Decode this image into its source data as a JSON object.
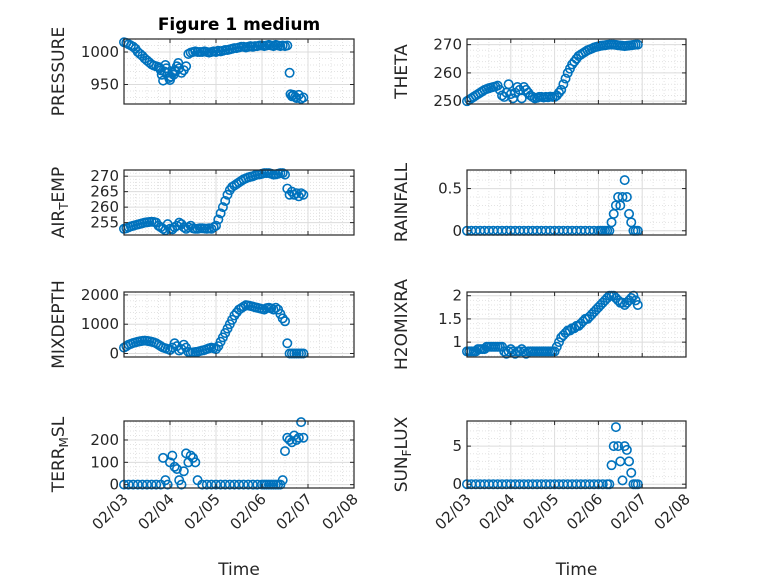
{
  "figure": {
    "title": "Figure 1 medium",
    "xlabel": "Time",
    "marker_color": "#0072BD",
    "axes_color": "#262626"
  },
  "chart_data": [
    {
      "id": "pressure",
      "type": "scatter",
      "ylabel": "PRESSURE",
      "xlim": [
        0,
        5
      ],
      "ylim": [
        920,
        1020
      ],
      "yticks": [
        950,
        1000
      ],
      "ytick_labels": [
        "950",
        "1000"
      ],
      "xticks": [
        0,
        1,
        2,
        3,
        4,
        5
      ],
      "xtick_labels": [],
      "title": "Figure 1 medium",
      "x": [
        0.0,
        0.05,
        0.1,
        0.15,
        0.2,
        0.25,
        0.3,
        0.35,
        0.4,
        0.45,
        0.5,
        0.55,
        0.6,
        0.65,
        0.7,
        0.75,
        0.78,
        0.8,
        0.82,
        0.85,
        0.88,
        0.9,
        0.92,
        0.95,
        0.98,
        1.0,
        1.02,
        1.05,
        1.08,
        1.1,
        1.12,
        1.15,
        1.18,
        1.2,
        1.25,
        1.3,
        1.35,
        1.4,
        1.45,
        1.5,
        1.55,
        1.6,
        1.65,
        1.7,
        1.75,
        1.8,
        1.85,
        1.9,
        1.95,
        2.0,
        2.05,
        2.1,
        2.15,
        2.2,
        2.25,
        2.3,
        2.35,
        2.4,
        2.45,
        2.5,
        2.55,
        2.6,
        2.65,
        2.7,
        2.75,
        2.8,
        2.85,
        2.9,
        2.95,
        3.0,
        3.05,
        3.1,
        3.15,
        3.2,
        3.25,
        3.3,
        3.35,
        3.4,
        3.45,
        3.5,
        3.55,
        3.6,
        3.62,
        3.65,
        3.68,
        3.72,
        3.75,
        3.8,
        3.85,
        3.9
      ],
      "y": [
        1015,
        1014,
        1012,
        1010,
        1008,
        1005,
        1000,
        997,
        994,
        990,
        987,
        984,
        981,
        979,
        978,
        977,
        975,
        972,
        965,
        956,
        970,
        980,
        975,
        968,
        960,
        957,
        962,
        968,
        965,
        972,
        970,
        978,
        983,
        975,
        968,
        972,
        978,
        997,
        999,
        1000,
        1001,
        1000,
        1000,
        1000,
        1001,
        1000,
        999,
        1000,
        1001,
        1000,
        1002,
        1001,
        1002,
        1003,
        1003,
        1004,
        1005,
        1006,
        1006,
        1007,
        1008,
        1008,
        1007,
        1008,
        1009,
        1008,
        1009,
        1009,
        1010,
        1010,
        1009,
        1010,
        1011,
        1010,
        1009,
        1011,
        1010,
        1009,
        1010,
        1009,
        1010,
        968,
        935,
        932,
        934,
        931,
        929,
        934,
        928,
        930
      ]
    },
    {
      "id": "theta",
      "type": "scatter",
      "ylabel": "THETA",
      "xlim": [
        0,
        5
      ],
      "ylim": [
        249,
        272
      ],
      "yticks": [
        250,
        260,
        270
      ],
      "ytick_labels": [
        "250",
        "260",
        "270"
      ],
      "xticks": [
        0,
        1,
        2,
        3,
        4,
        5
      ],
      "xtick_labels": [],
      "x": [
        0.0,
        0.05,
        0.1,
        0.15,
        0.2,
        0.25,
        0.3,
        0.35,
        0.4,
        0.45,
        0.5,
        0.55,
        0.6,
        0.65,
        0.7,
        0.75,
        0.8,
        0.85,
        0.9,
        0.95,
        1.0,
        1.05,
        1.1,
        1.15,
        1.2,
        1.25,
        1.3,
        1.35,
        1.4,
        1.45,
        1.5,
        1.55,
        1.6,
        1.65,
        1.7,
        1.75,
        1.8,
        1.85,
        1.9,
        1.95,
        2.0,
        2.05,
        2.1,
        2.15,
        2.2,
        2.25,
        2.3,
        2.35,
        2.4,
        2.45,
        2.5,
        2.55,
        2.6,
        2.65,
        2.7,
        2.75,
        2.8,
        2.85,
        2.9,
        2.95,
        3.0,
        3.05,
        3.1,
        3.15,
        3.2,
        3.25,
        3.3,
        3.35,
        3.4,
        3.45,
        3.5,
        3.55,
        3.6,
        3.65,
        3.7,
        3.75,
        3.8,
        3.85,
        3.9
      ],
      "y": [
        250,
        250.5,
        251,
        251.5,
        252,
        252.5,
        253,
        253.5,
        254,
        254.3,
        254.6,
        254.8,
        255,
        255.2,
        255.5,
        254,
        252,
        251.5,
        253,
        256,
        252.5,
        251,
        253,
        255,
        254,
        251,
        255,
        254,
        253,
        252,
        251.5,
        251,
        251.2,
        251.5,
        251.5,
        251.3,
        251.5,
        251.4,
        251.6,
        251.5,
        251.5,
        252,
        253,
        254,
        256,
        258,
        260,
        261.5,
        263,
        264,
        265,
        266,
        266.5,
        267,
        267.5,
        268,
        268.3,
        268.6,
        269,
        269.2,
        269.4,
        269.6,
        269.7,
        269.8,
        269.9,
        270,
        270,
        270,
        269.9,
        269.8,
        269.7,
        269.6,
        269.5,
        269.6,
        269.7,
        269.8,
        269.9,
        270,
        270
      ]
    },
    {
      "id": "air_temp",
      "type": "scatter",
      "ylabel": "AIR_TEMP",
      "xlim": [
        0,
        5
      ],
      "ylim": [
        251,
        272
      ],
      "yticks": [
        255,
        260,
        265,
        270
      ],
      "ytick_labels": [
        "255",
        "260",
        "265",
        "270"
      ],
      "xticks": [
        0,
        1,
        2,
        3,
        4,
        5
      ],
      "xtick_labels": [],
      "x": [
        0.0,
        0.05,
        0.1,
        0.15,
        0.2,
        0.25,
        0.3,
        0.35,
        0.4,
        0.45,
        0.5,
        0.55,
        0.6,
        0.65,
        0.7,
        0.75,
        0.8,
        0.85,
        0.9,
        0.95,
        1.0,
        1.05,
        1.1,
        1.15,
        1.2,
        1.25,
        1.3,
        1.35,
        1.4,
        1.45,
        1.5,
        1.55,
        1.6,
        1.65,
        1.7,
        1.75,
        1.8,
        1.85,
        1.9,
        1.95,
        2.0,
        2.05,
        2.1,
        2.15,
        2.2,
        2.25,
        2.3,
        2.35,
        2.4,
        2.45,
        2.5,
        2.55,
        2.6,
        2.65,
        2.7,
        2.75,
        2.8,
        2.85,
        2.9,
        2.95,
        3.0,
        3.05,
        3.1,
        3.15,
        3.2,
        3.25,
        3.3,
        3.35,
        3.4,
        3.45,
        3.5,
        3.55,
        3.6,
        3.65,
        3.7,
        3.75,
        3.8,
        3.85,
        3.9
      ],
      "y": [
        253,
        253.2,
        253.5,
        253.8,
        254,
        254.2,
        254.4,
        254.6,
        254.8,
        255,
        255.1,
        255.2,
        255.3,
        255.2,
        255,
        254,
        253.5,
        253,
        252.5,
        254.5,
        253,
        252.8,
        253.5,
        254,
        255,
        254.5,
        253.5,
        253,
        253.5,
        254,
        253.2,
        253,
        253,
        253.2,
        253.2,
        253.1,
        253,
        253.2,
        253,
        253.5,
        254,
        256,
        258,
        260,
        262,
        264,
        265.5,
        266.5,
        267,
        267.5,
        268,
        268.5,
        269,
        269.3,
        269.6,
        269.8,
        270,
        270.3,
        270.5,
        270.6,
        270.8,
        271,
        271,
        271,
        270.8,
        270.5,
        270.6,
        270.8,
        271,
        271,
        270.5,
        266,
        264,
        265,
        264,
        264.5,
        263.5,
        264.5,
        264
      ]
    },
    {
      "id": "rainfall",
      "type": "scatter",
      "ylabel": "RAINFALL",
      "xlim": [
        0,
        5
      ],
      "ylim": [
        -0.05,
        0.72
      ],
      "yticks": [
        0,
        0.5
      ],
      "ytick_labels": [
        "0",
        "0.5"
      ],
      "xticks": [
        0,
        1,
        2,
        3,
        4,
        5
      ],
      "xtick_labels": [],
      "x": [
        0.0,
        0.1,
        0.2,
        0.3,
        0.4,
        0.5,
        0.6,
        0.7,
        0.8,
        0.9,
        1.0,
        1.1,
        1.2,
        1.3,
        1.4,
        1.5,
        1.6,
        1.7,
        1.8,
        1.9,
        2.0,
        2.1,
        2.2,
        2.3,
        2.4,
        2.5,
        2.6,
        2.7,
        2.8,
        2.9,
        3.0,
        3.05,
        3.1,
        3.15,
        3.2,
        3.25,
        3.3,
        3.35,
        3.4,
        3.45,
        3.5,
        3.55,
        3.6,
        3.65,
        3.7,
        3.75,
        3.8,
        3.85,
        3.9
      ],
      "y": [
        0,
        0,
        0,
        0,
        0,
        0,
        0,
        0,
        0,
        0,
        0,
        0,
        0,
        0,
        0,
        0,
        0,
        0,
        0,
        0,
        0,
        0,
        0,
        0,
        0,
        0,
        0,
        0,
        0,
        0,
        0,
        0,
        0,
        0,
        0,
        0,
        0.1,
        0.2,
        0.3,
        0.4,
        0.3,
        0.4,
        0.6,
        0.4,
        0.2,
        0.1,
        0,
        0,
        0
      ]
    },
    {
      "id": "mixdepth",
      "type": "scatter",
      "ylabel": "MIXDEPTH",
      "xlim": [
        0,
        5
      ],
      "ylim": [
        -120,
        2100
      ],
      "yticks": [
        0,
        1000,
        2000
      ],
      "ytick_labels": [
        "0",
        "1000",
        "2000"
      ],
      "xticks": [
        0,
        1,
        2,
        3,
        4,
        5
      ],
      "xtick_labels": [],
      "x": [
        0.0,
        0.05,
        0.1,
        0.15,
        0.2,
        0.25,
        0.3,
        0.35,
        0.4,
        0.45,
        0.5,
        0.55,
        0.6,
        0.65,
        0.7,
        0.75,
        0.8,
        0.85,
        0.9,
        0.95,
        1.0,
        1.05,
        1.1,
        1.15,
        1.2,
        1.25,
        1.3,
        1.35,
        1.4,
        1.45,
        1.5,
        1.55,
        1.6,
        1.65,
        1.7,
        1.75,
        1.8,
        1.85,
        1.9,
        1.95,
        2.0,
        2.05,
        2.1,
        2.15,
        2.2,
        2.25,
        2.3,
        2.35,
        2.4,
        2.45,
        2.5,
        2.55,
        2.6,
        2.65,
        2.7,
        2.75,
        2.8,
        2.85,
        2.9,
        2.95,
        3.0,
        3.05,
        3.1,
        3.15,
        3.2,
        3.25,
        3.3,
        3.35,
        3.4,
        3.45,
        3.5,
        3.55,
        3.6,
        3.65,
        3.7,
        3.75,
        3.8,
        3.85,
        3.9
      ],
      "y": [
        200,
        250,
        300,
        330,
        360,
        380,
        400,
        420,
        430,
        440,
        430,
        420,
        400,
        380,
        350,
        300,
        250,
        200,
        180,
        150,
        120,
        200,
        350,
        250,
        100,
        150,
        300,
        200,
        50,
        30,
        40,
        50,
        60,
        80,
        100,
        120,
        150,
        180,
        200,
        180,
        150,
        250,
        400,
        550,
        700,
        850,
        1000,
        1150,
        1300,
        1400,
        1500,
        1550,
        1600,
        1650,
        1640,
        1620,
        1600,
        1580,
        1560,
        1540,
        1520,
        1500,
        1550,
        1560,
        1540,
        1500,
        1560,
        1500,
        1350,
        1200,
        1100,
        350,
        0,
        0,
        0,
        0,
        0,
        0,
        0
      ]
    },
    {
      "id": "h2omixra",
      "type": "scatter",
      "ylabel": "H2OMIXRA",
      "xlim": [
        0,
        5
      ],
      "ylim": [
        0.68,
        2.08
      ],
      "yticks": [
        1,
        1.5,
        2
      ],
      "ytick_labels": [
        "1",
        "1.5",
        "2"
      ],
      "xticks": [
        0,
        1,
        2,
        3,
        4,
        5
      ],
      "xtick_labels": [],
      "x": [
        0.0,
        0.05,
        0.1,
        0.15,
        0.2,
        0.25,
        0.3,
        0.35,
        0.4,
        0.45,
        0.5,
        0.55,
        0.6,
        0.65,
        0.7,
        0.75,
        0.8,
        0.85,
        0.9,
        0.95,
        1.0,
        1.05,
        1.1,
        1.15,
        1.2,
        1.25,
        1.3,
        1.35,
        1.4,
        1.45,
        1.5,
        1.55,
        1.6,
        1.65,
        1.7,
        1.75,
        1.8,
        1.85,
        1.9,
        1.95,
        2.0,
        2.05,
        2.1,
        2.15,
        2.2,
        2.25,
        2.3,
        2.35,
        2.4,
        2.45,
        2.5,
        2.55,
        2.6,
        2.65,
        2.7,
        2.75,
        2.8,
        2.85,
        2.9,
        2.95,
        3.0,
        3.05,
        3.1,
        3.15,
        3.2,
        3.25,
        3.3,
        3.35,
        3.4,
        3.45,
        3.5,
        3.55,
        3.6,
        3.65,
        3.7,
        3.75,
        3.8,
        3.85,
        3.9
      ],
      "y": [
        0.8,
        0.8,
        0.8,
        0.8,
        0.8,
        0.85,
        0.85,
        0.85,
        0.85,
        0.9,
        0.9,
        0.9,
        0.9,
        0.9,
        0.9,
        0.9,
        0.9,
        0.8,
        0.75,
        0.8,
        0.85,
        0.8,
        0.75,
        0.8,
        0.8,
        0.85,
        0.8,
        0.75,
        0.8,
        0.8,
        0.8,
        0.8,
        0.8,
        0.8,
        0.8,
        0.8,
        0.8,
        0.8,
        0.8,
        0.8,
        0.8,
        0.9,
        1.0,
        1.1,
        1.15,
        1.2,
        1.25,
        1.25,
        1.3,
        1.3,
        1.35,
        1.35,
        1.4,
        1.45,
        1.5,
        1.5,
        1.55,
        1.6,
        1.65,
        1.7,
        1.75,
        1.8,
        1.85,
        1.9,
        1.95,
        2.0,
        2.0,
        2.0,
        1.95,
        1.9,
        1.85,
        1.85,
        1.8,
        1.85,
        1.9,
        1.95,
        2.0,
        1.9,
        1.8
      ]
    },
    {
      "id": "terr_msl",
      "type": "scatter",
      "ylabel": "TERR_MSL",
      "xlim": [
        0,
        5
      ],
      "ylim": [
        -15,
        285
      ],
      "yticks": [
        0,
        100,
        200
      ],
      "ytick_labels": [
        "0",
        "100",
        "200"
      ],
      "xticks": [
        0,
        1,
        2,
        3,
        4,
        5
      ],
      "xtick_labels": [
        "02/03",
        "02/04",
        "02/05",
        "02/06",
        "02/07",
        "02/08"
      ],
      "x": [
        0.0,
        0.1,
        0.2,
        0.3,
        0.4,
        0.5,
        0.6,
        0.7,
        0.8,
        0.85,
        0.9,
        0.95,
        1.0,
        1.05,
        1.1,
        1.15,
        1.2,
        1.25,
        1.3,
        1.35,
        1.4,
        1.45,
        1.5,
        1.55,
        1.6,
        1.7,
        1.8,
        1.9,
        2.0,
        2.1,
        2.2,
        2.3,
        2.4,
        2.5,
        2.6,
        2.7,
        2.8,
        2.9,
        3.0,
        3.05,
        3.1,
        3.15,
        3.2,
        3.25,
        3.3,
        3.35,
        3.4,
        3.45,
        3.5,
        3.55,
        3.6,
        3.65,
        3.7,
        3.75,
        3.8,
        3.85,
        3.9
      ],
      "y": [
        0,
        0,
        0,
        0,
        0,
        0,
        0,
        0,
        0,
        120,
        20,
        0,
        100,
        130,
        80,
        70,
        20,
        0,
        60,
        140,
        100,
        130,
        120,
        100,
        20,
        0,
        0,
        0,
        0,
        0,
        0,
        0,
        0,
        0,
        0,
        0,
        0,
        0,
        0,
        0,
        0,
        0,
        0,
        0,
        0,
        0,
        0,
        20,
        150,
        210,
        200,
        190,
        220,
        200,
        210,
        280,
        210
      ]
    },
    {
      "id": "sun_flux",
      "type": "scatter",
      "ylabel": "SUN_FLUX",
      "xlim": [
        0,
        5
      ],
      "ylim": [
        -0.5,
        8.3
      ],
      "yticks": [
        0,
        5
      ],
      "ytick_labels": [
        "0",
        "5"
      ],
      "xticks": [
        0,
        1,
        2,
        3,
        4,
        5
      ],
      "xtick_labels": [
        "02/03",
        "02/04",
        "02/05",
        "02/06",
        "02/07",
        "02/08"
      ],
      "x": [
        0.0,
        0.1,
        0.2,
        0.3,
        0.4,
        0.5,
        0.6,
        0.7,
        0.8,
        0.9,
        1.0,
        1.1,
        1.2,
        1.3,
        1.4,
        1.5,
        1.6,
        1.7,
        1.8,
        1.9,
        2.0,
        2.1,
        2.2,
        2.3,
        2.4,
        2.5,
        2.6,
        2.7,
        2.8,
        2.9,
        3.0,
        3.1,
        3.2,
        3.25,
        3.3,
        3.35,
        3.4,
        3.45,
        3.5,
        3.55,
        3.6,
        3.65,
        3.7,
        3.75,
        3.8,
        3.85,
        3.9
      ],
      "y": [
        0,
        0,
        0,
        0,
        0,
        0,
        0,
        0,
        0,
        0,
        0,
        0,
        0,
        0,
        0,
        0,
        0,
        0,
        0,
        0,
        0,
        0,
        0,
        0,
        0,
        0,
        0,
        0,
        0,
        0,
        0,
        0,
        0,
        0,
        2.5,
        5,
        7.5,
        5,
        3,
        0.5,
        5,
        4.5,
        3,
        1.5,
        0,
        0,
        0
      ]
    }
  ]
}
